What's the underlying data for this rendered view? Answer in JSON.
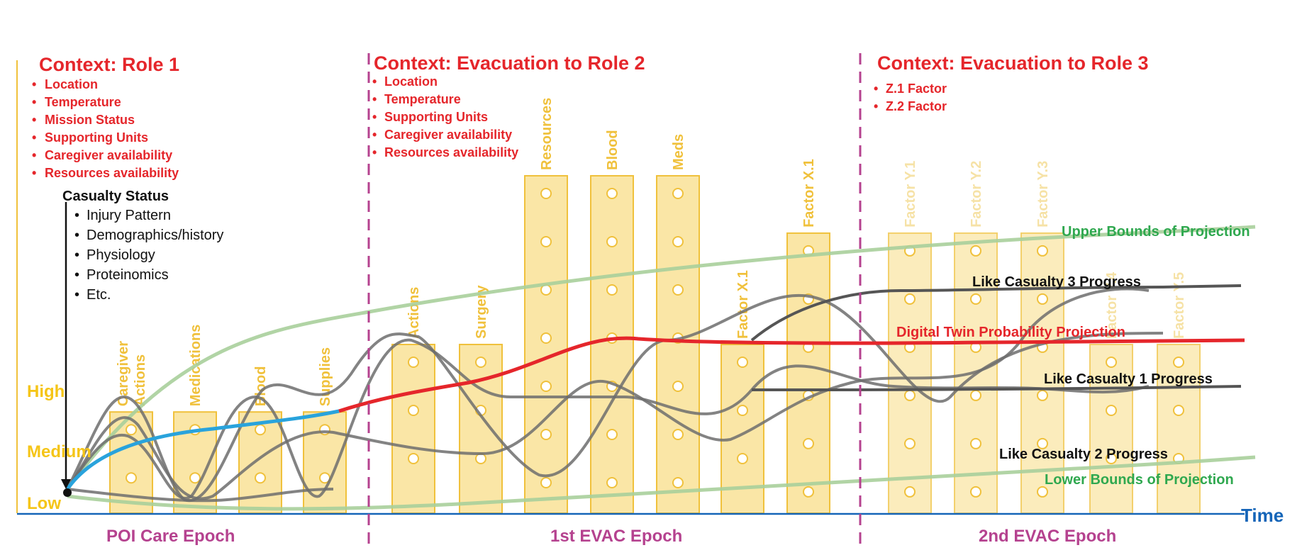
{
  "contexts": [
    {
      "title": "Context: Role 1",
      "items": [
        "Location",
        "Temperature",
        "Mission Status",
        "Supporting Units",
        "Caregiver availability",
        "Resources availability"
      ]
    },
    {
      "title": "Context: Evacuation to Role 2",
      "items": [
        "Location",
        "Temperature",
        "Supporting Units",
        "Caregiver availability",
        "Resources availability"
      ]
    },
    {
      "title": "Context: Evacuation to Role 3",
      "items": [
        "Z.1 Factor",
        "Z.2 Factor"
      ]
    }
  ],
  "casualty": {
    "title": "Casualty Status",
    "items": [
      "Injury Pattern",
      "Demographics/history",
      "Physiology",
      "Proteinomics",
      "Etc."
    ]
  },
  "levels": [
    "High",
    "Medium",
    "Low"
  ],
  "epochs": [
    "POI Care Epoch",
    "1st EVAC Epoch",
    "2nd EVAC Epoch"
  ],
  "time_label": "Time",
  "bars": [
    {
      "label": "Caregiver\nActions",
      "level": 0.3
    },
    {
      "label": "Medications",
      "level": 0.3
    },
    {
      "label": "Blood",
      "level": 0.3
    },
    {
      "label": "Supplies",
      "level": 0.3
    },
    {
      "label": "Actions",
      "level": 0.5
    },
    {
      "label": "Surgery",
      "level": 0.5
    },
    {
      "label": "Resources",
      "level": 1.0
    },
    {
      "label": "Blood",
      "level": 1.0
    },
    {
      "label": "Meds",
      "level": 1.0
    },
    {
      "label": "Factor X.1",
      "level": 0.5
    },
    {
      "label": "Factor X.1",
      "level": 0.83
    },
    {
      "label": "Factor Y.1",
      "level": 0.83
    },
    {
      "label": "Factor Y.2",
      "level": 0.83
    },
    {
      "label": "Factor Y.3",
      "level": 0.83
    },
    {
      "label": "Factor Y.4",
      "level": 0.5
    },
    {
      "label": "Factor Y.5",
      "level": 0.5
    }
  ],
  "curve_labels": {
    "upper": "Upper Bounds of Projection",
    "lower": "Lower Bounds of Projection",
    "c3": "Like Casualty 3 Progress",
    "dt": "Digital Twin Probability Projection",
    "c1": "Like Casualty 1 Progress",
    "c2": "Like Casualty 2 Progress"
  },
  "colors": {
    "context": "#e5262b",
    "bar_fill": "#fae6a6",
    "bar_stroke": "#f0c13c",
    "bounds": "#a9cf9b",
    "casualty_curves": "#555555",
    "digital_twin": "#e5262b",
    "poi_segment": "#29a3dc",
    "epoch_divider": "#b5428f",
    "time_axis": "#1565b8"
  }
}
